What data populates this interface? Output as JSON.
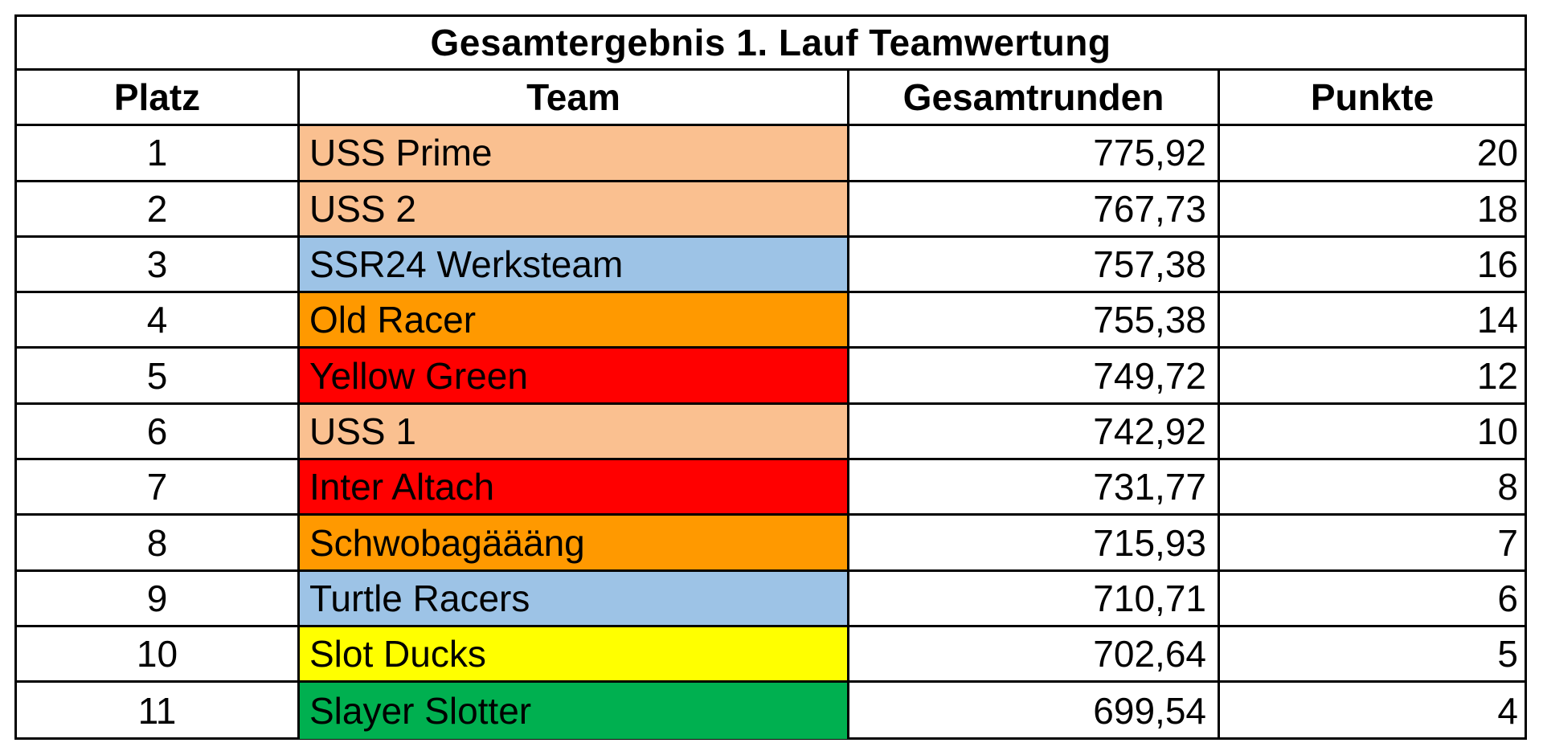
{
  "title": "Gesamtergebnis 1. Lauf Teamwertung",
  "columns": {
    "platz": "Platz",
    "team": "Team",
    "gesamtrunden": "Gesamtrunden",
    "punkte": "Punkte"
  },
  "rows": [
    {
      "platz": "1",
      "team": "USS Prime",
      "gesamtrunden": "775,92",
      "punkte": "20",
      "team_color": "#FAC090"
    },
    {
      "platz": "2",
      "team": "USS 2",
      "gesamtrunden": "767,73",
      "punkte": "18",
      "team_color": "#FAC090"
    },
    {
      "platz": "3",
      "team": "SSR24 Werksteam",
      "gesamtrunden": "757,38",
      "punkte": "16",
      "team_color": "#9DC3E6"
    },
    {
      "platz": "4",
      "team": "Old Racer",
      "gesamtrunden": "755,38",
      "punkte": "14",
      "team_color": "#FF9900"
    },
    {
      "platz": "5",
      "team": "Yellow Green",
      "gesamtrunden": "749,72",
      "punkte": "12",
      "team_color": "#FF0000"
    },
    {
      "platz": "6",
      "team": "USS 1",
      "gesamtrunden": "742,92",
      "punkte": "10",
      "team_color": "#FAC090"
    },
    {
      "platz": "7",
      "team": "Inter Altach",
      "gesamtrunden": "731,77",
      "punkte": "8",
      "team_color": "#FF0000"
    },
    {
      "platz": "8",
      "team": "Schwobagäääng",
      "gesamtrunden": "715,93",
      "punkte": "7",
      "team_color": "#FF9900"
    },
    {
      "platz": "9",
      "team": "Turtle Racers",
      "gesamtrunden": "710,71",
      "punkte": "6",
      "team_color": "#9DC3E6"
    },
    {
      "platz": "10",
      "team": "Slot Ducks",
      "gesamtrunden": "702,64",
      "punkte": "5",
      "team_color": "#FFFF00"
    },
    {
      "platz": "11",
      "team": "Slayer Slotter",
      "gesamtrunden": "699,54",
      "punkte": "4",
      "team_color": "#00B050"
    }
  ]
}
